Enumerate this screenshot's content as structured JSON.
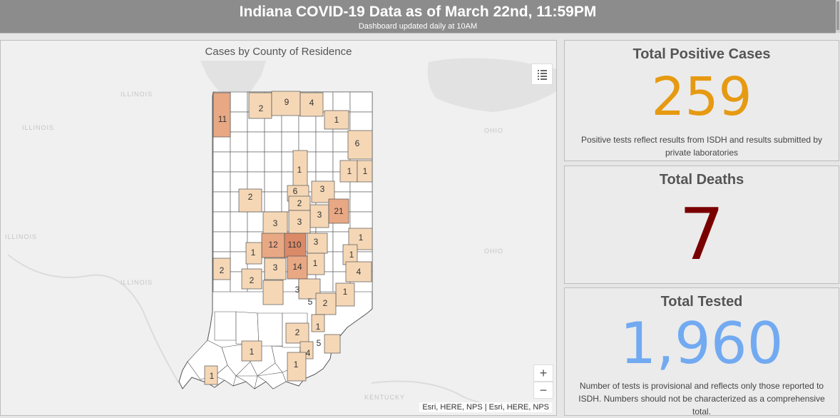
{
  "header": {
    "title": "Indiana COVID-19 Data as of March 22nd, 11:59PM",
    "subtitle": "Dashboard updated daily at 10AM"
  },
  "map": {
    "title": "Cases by County of Residence",
    "attribution": "Esri, HERE, NPS | Esri, HERE, NPS",
    "zoom_in": "+",
    "zoom_out": "−",
    "legend_icon": "list-legend-icon",
    "background_labels": [
      "ILLINOIS",
      "ILLINOIS",
      "ILLINOIS",
      "ILLINOIS",
      "OHIO",
      "OHIO",
      "KENTUCKY"
    ],
    "colors": {
      "none": "#ffffff",
      "low": "#f5d7b6",
      "mid": "#e8a884",
      "high": "#db8a68"
    },
    "counties": [
      {
        "label": "11",
        "level": "mid"
      },
      {
        "label": "2",
        "level": "low"
      },
      {
        "label": "9",
        "level": "low"
      },
      {
        "label": "4",
        "level": "low"
      },
      {
        "label": "1",
        "level": "low"
      },
      {
        "label": "6",
        "level": "low"
      },
      {
        "label": "1",
        "level": "low"
      },
      {
        "label": "1",
        "level": "low"
      },
      {
        "label": "1",
        "level": "low"
      },
      {
        "label": "2",
        "level": "low"
      },
      {
        "label": "6",
        "level": "low"
      },
      {
        "label": "3",
        "level": "low"
      },
      {
        "label": "2",
        "level": "low"
      },
      {
        "label": "3",
        "level": "low"
      },
      {
        "label": "3",
        "level": "low"
      },
      {
        "label": "21",
        "level": "mid"
      },
      {
        "label": "3",
        "level": "low"
      },
      {
        "label": "1",
        "level": "low"
      },
      {
        "label": "12",
        "level": "mid"
      },
      {
        "label": "110",
        "level": "high"
      },
      {
        "label": "3",
        "level": "low"
      },
      {
        "label": "1",
        "level": "low"
      },
      {
        "label": "1",
        "level": "low"
      },
      {
        "label": "2",
        "level": "low"
      },
      {
        "label": "3",
        "level": "low"
      },
      {
        "label": "14",
        "level": "mid"
      },
      {
        "label": "1",
        "level": "low"
      },
      {
        "label": "4",
        "level": "low"
      },
      {
        "label": "2",
        "level": "low"
      },
      {
        "label": "3",
        "level": "low"
      },
      {
        "label": "5",
        "level": "low"
      },
      {
        "label": "1",
        "level": "low"
      },
      {
        "label": "2",
        "level": "low"
      },
      {
        "label": "1",
        "level": "low"
      },
      {
        "label": "2",
        "level": "low"
      },
      {
        "label": "5",
        "level": "low"
      },
      {
        "label": "4",
        "level": "low"
      },
      {
        "label": "1",
        "level": "low"
      },
      {
        "label": "1",
        "level": "low"
      },
      {
        "label": "1",
        "level": "low"
      }
    ]
  },
  "stats": {
    "positive": {
      "title": "Total Positive Cases",
      "value": "259",
      "note": "Positive tests reflect results from ISDH and results submitted by private laboratories",
      "color": "#e69a12"
    },
    "deaths": {
      "title": "Total Deaths",
      "value": "7",
      "color": "#7a0000"
    },
    "tested": {
      "title": "Total Tested",
      "value": "1,960",
      "note": "Number of tests is provisional and reflects only those reported to ISDH. Numbers should not be characterized as a comprehensive total.",
      "color": "#72aaf1"
    }
  }
}
